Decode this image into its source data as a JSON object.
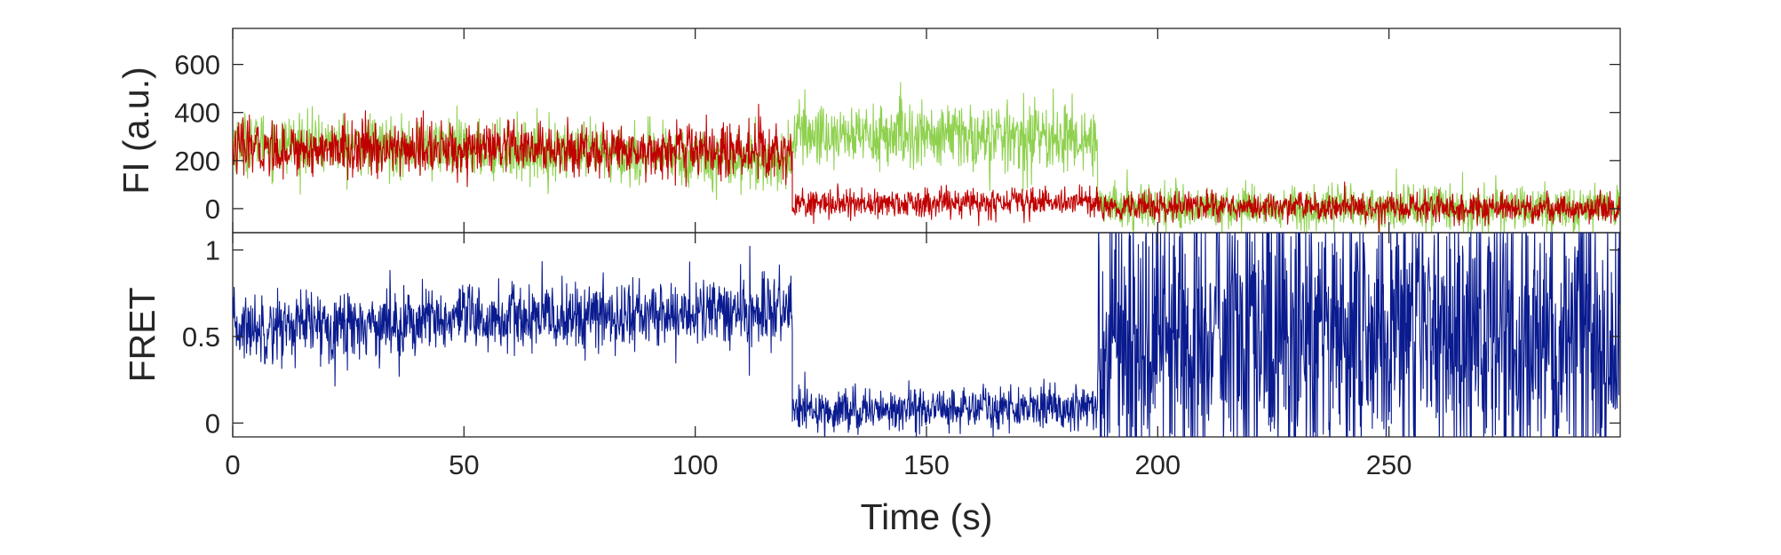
{
  "chart_data": [
    {
      "type": "line",
      "panel": "top",
      "title": "",
      "xlabel": "",
      "ylabel": "FI (a.u.)",
      "xlim": [
        0,
        300
      ],
      "ylim": [
        -100,
        750
      ],
      "xticks": [
        0,
        50,
        100,
        150,
        200,
        250
      ],
      "yticks": [
        0,
        200,
        400,
        600
      ],
      "ytick_labels": [
        "0",
        "200",
        "400",
        "600"
      ],
      "grid": false,
      "legend": "none",
      "series": [
        {
          "color": "#8fd14f",
          "segments": [
            {
              "x0": 0,
              "x1": 121,
              "y_start": 280,
              "y_end": 200,
              "noise": 60
            },
            {
              "x0": 121,
              "x1": 187,
              "y_start": 310,
              "y_end": 290,
              "noise": 70
            },
            {
              "x0": 187,
              "x1": 300,
              "y_start": 10,
              "y_end": 0,
              "noise": 45
            }
          ]
        },
        {
          "color": "#c00000",
          "segments": [
            {
              "x0": 0,
              "x1": 121,
              "y_start": 250,
              "y_end": 240,
              "noise": 55
            },
            {
              "x0": 121,
              "x1": 187,
              "y_start": 15,
              "y_end": 30,
              "noise": 30
            },
            {
              "x0": 187,
              "x1": 300,
              "y_start": 10,
              "y_end": 0,
              "noise": 30
            }
          ]
        }
      ]
    },
    {
      "type": "line",
      "panel": "bottom",
      "title": "",
      "xlabel": "Time (s)",
      "ylabel": "FRET",
      "xlim": [
        0,
        300
      ],
      "ylim": [
        -0.08,
        1.1
      ],
      "xticks": [
        0,
        50,
        100,
        150,
        200,
        250
      ],
      "xtick_labels": [
        "0",
        "50",
        "100",
        "150",
        "200",
        "250"
      ],
      "yticks": [
        0,
        0.5,
        1
      ],
      "ytick_labels": [
        "0",
        "0.5",
        "1"
      ],
      "grid": false,
      "legend": "none",
      "series": [
        {
          "color": "#0a1b8f",
          "segments": [
            {
              "x0": 0,
              "x1": 121,
              "y_start": 0.55,
              "y_end": 0.65,
              "noise": 0.1
            },
            {
              "x0": 121,
              "x1": 187,
              "y_start": 0.07,
              "y_end": 0.1,
              "noise": 0.06
            },
            {
              "x0": 187,
              "x1": 300,
              "y_start": 0.5,
              "y_end": 0.5,
              "noise": 0.45
            }
          ]
        }
      ]
    }
  ]
}
